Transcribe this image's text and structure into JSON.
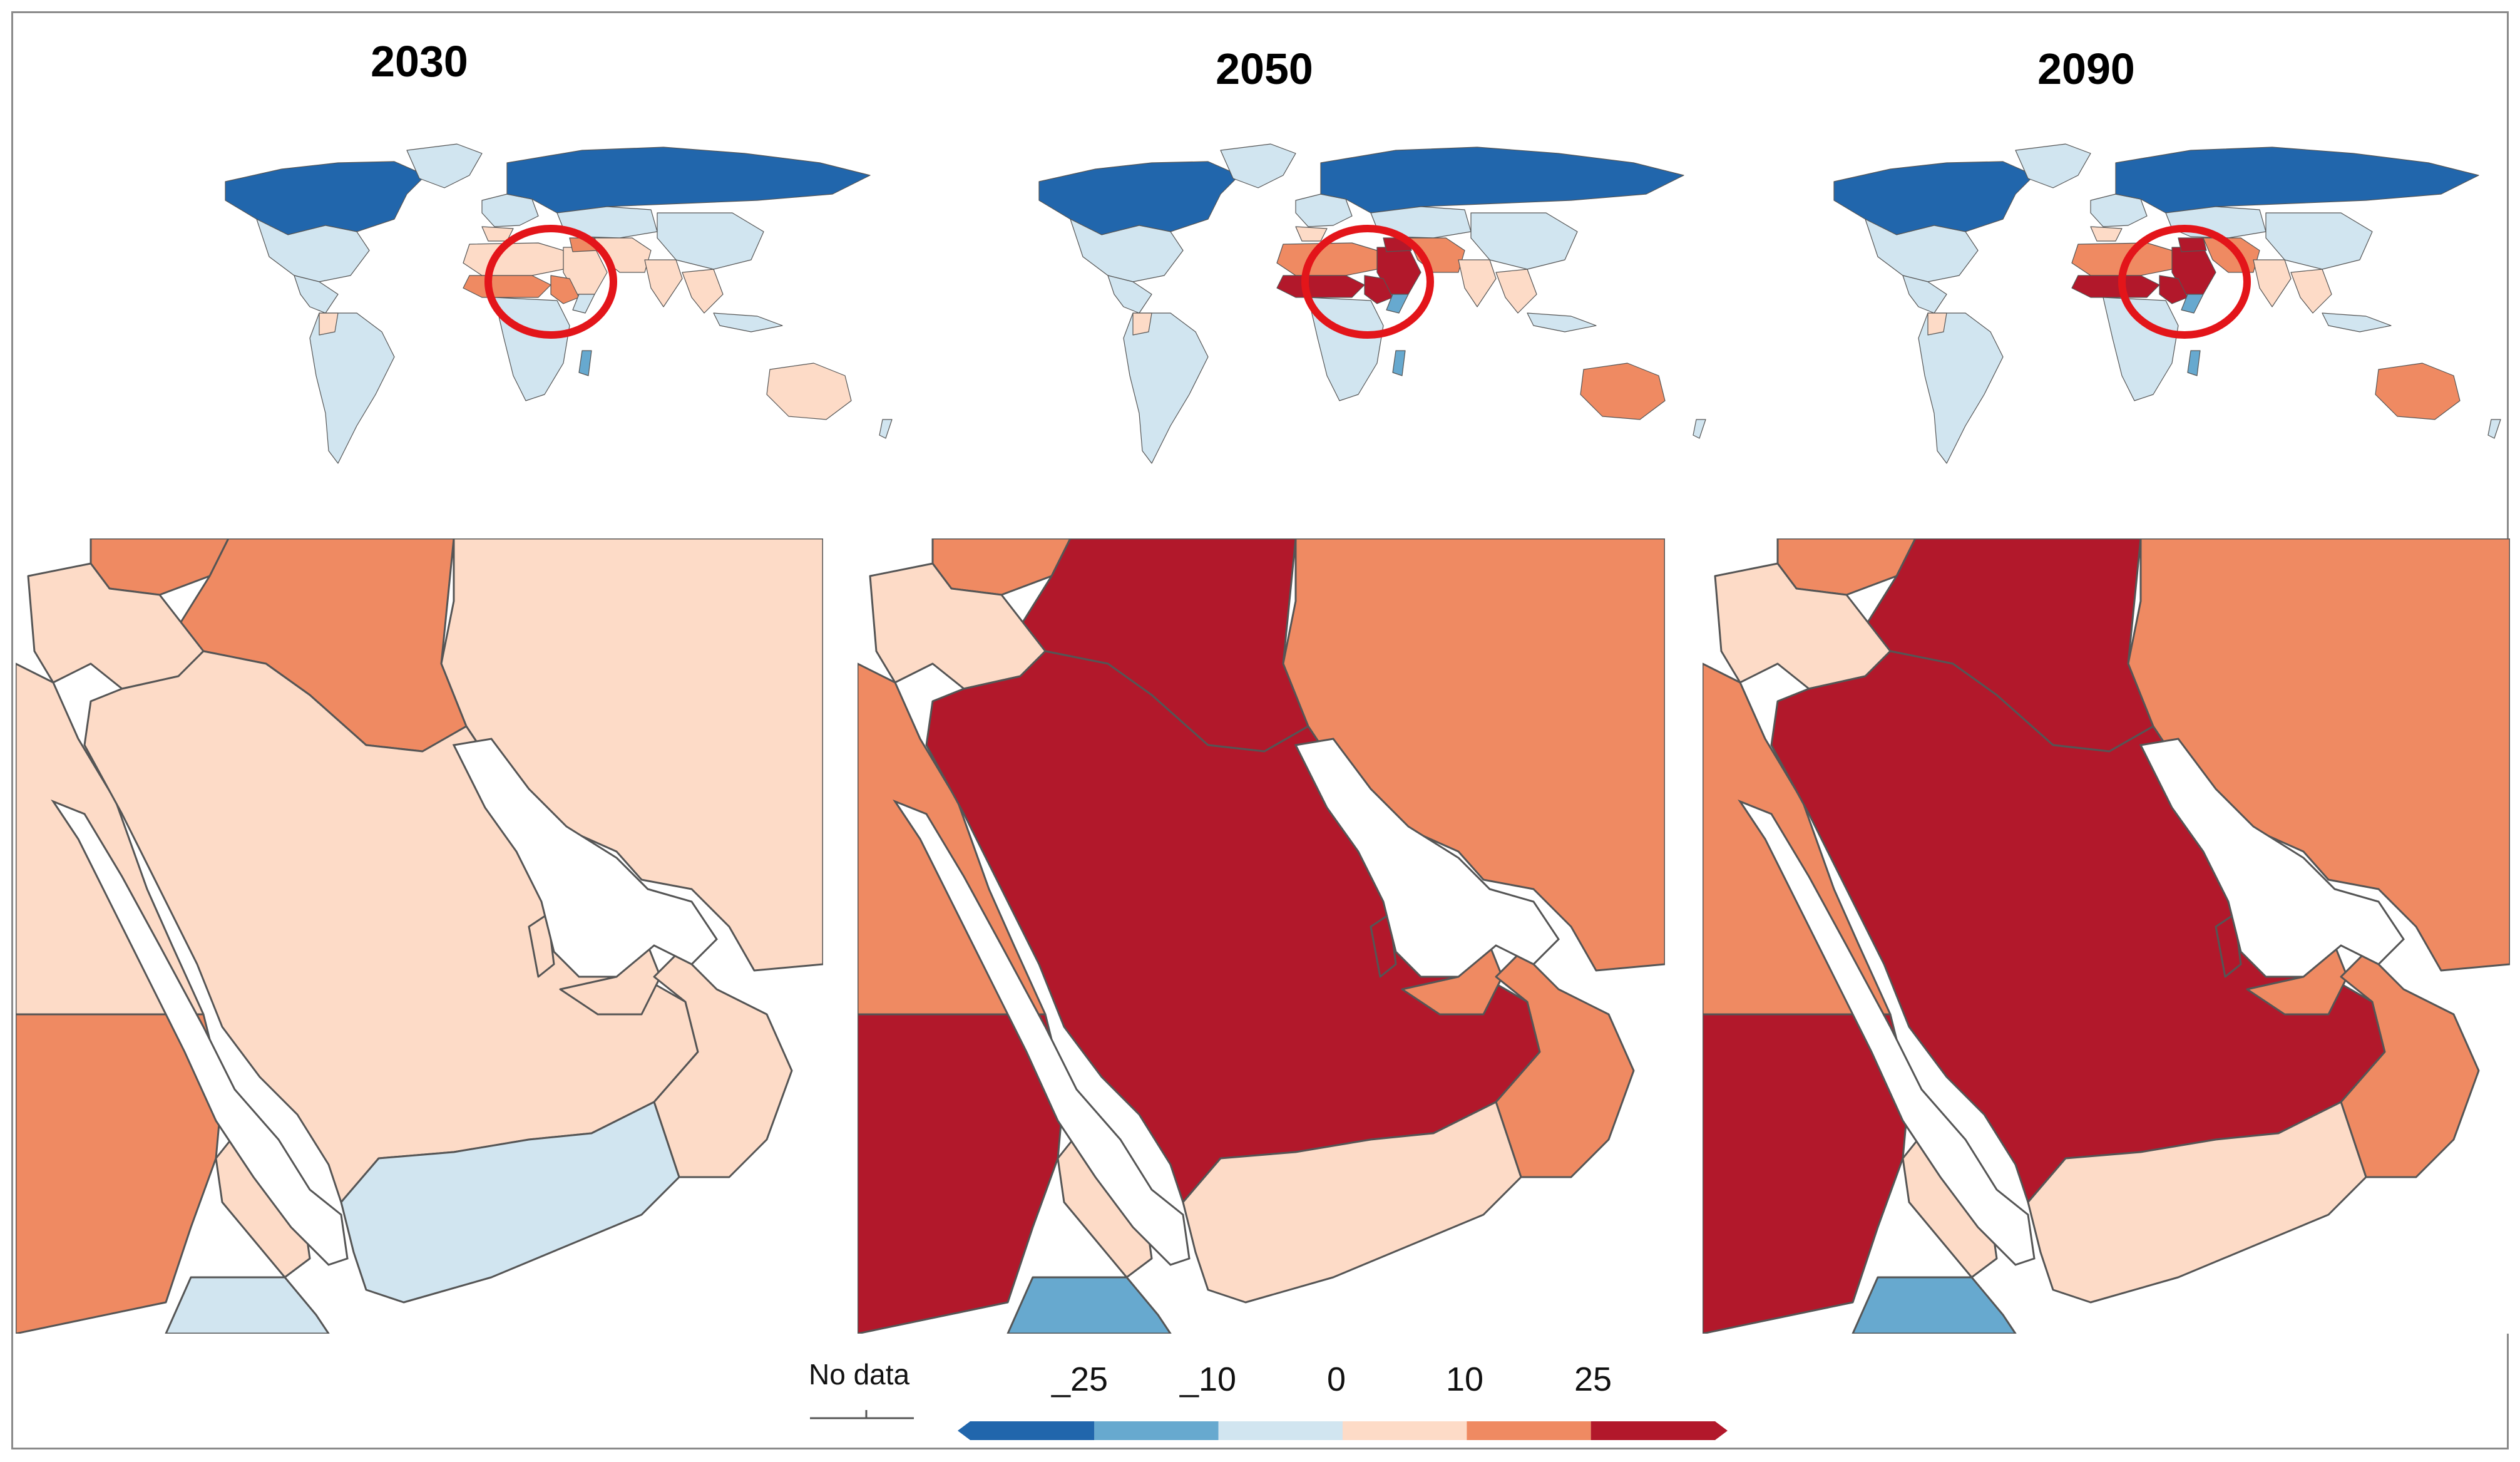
{
  "panels": [
    {
      "year": "2030",
      "level": {
        "north": "very-cold",
        "sahel": "hot",
        "arabia": "warm",
        "iraq": "hot",
        "iran": "warm",
        "yemen": "cool",
        "oman": "warm",
        "horn": "cool",
        "egypt_sudan": "warm",
        "ethiopia": "hot",
        "australia": "warm"
      }
    },
    {
      "year": "2050",
      "level": {
        "north": "very-cold",
        "sahel": "very-hot",
        "arabia": "very-hot",
        "iraq": "very-hot",
        "iran": "hot",
        "yemen": "warm",
        "oman": "hot",
        "horn": "cold",
        "egypt_sudan": "hot",
        "ethiopia": "very-hot",
        "australia": "hot"
      }
    },
    {
      "year": "2090",
      "level": {
        "north": "very-cold",
        "sahel": "very-hot",
        "arabia": "very-hot",
        "iraq": "very-hot",
        "iran": "hot",
        "yemen": "warm",
        "oman": "hot",
        "horn": "cold",
        "egypt_sudan": "hot",
        "ethiopia": "very-hot",
        "australia": "hot"
      }
    }
  ],
  "legend": {
    "no_data_label": "No data",
    "ticks": [
      "_25",
      "_10",
      "0",
      "10",
      "25"
    ],
    "bins": [
      {
        "level": "very-cold",
        "color": "#2166ac"
      },
      {
        "level": "cold",
        "color": "#67a9cf"
      },
      {
        "level": "cool",
        "color": "#d1e5f0"
      },
      {
        "level": "warm",
        "color": "#fddbc7"
      },
      {
        "level": "hot",
        "color": "#ef8a62"
      },
      {
        "level": "very-hot",
        "color": "#b2182b"
      }
    ]
  },
  "highlight_color": "#e3151a"
}
